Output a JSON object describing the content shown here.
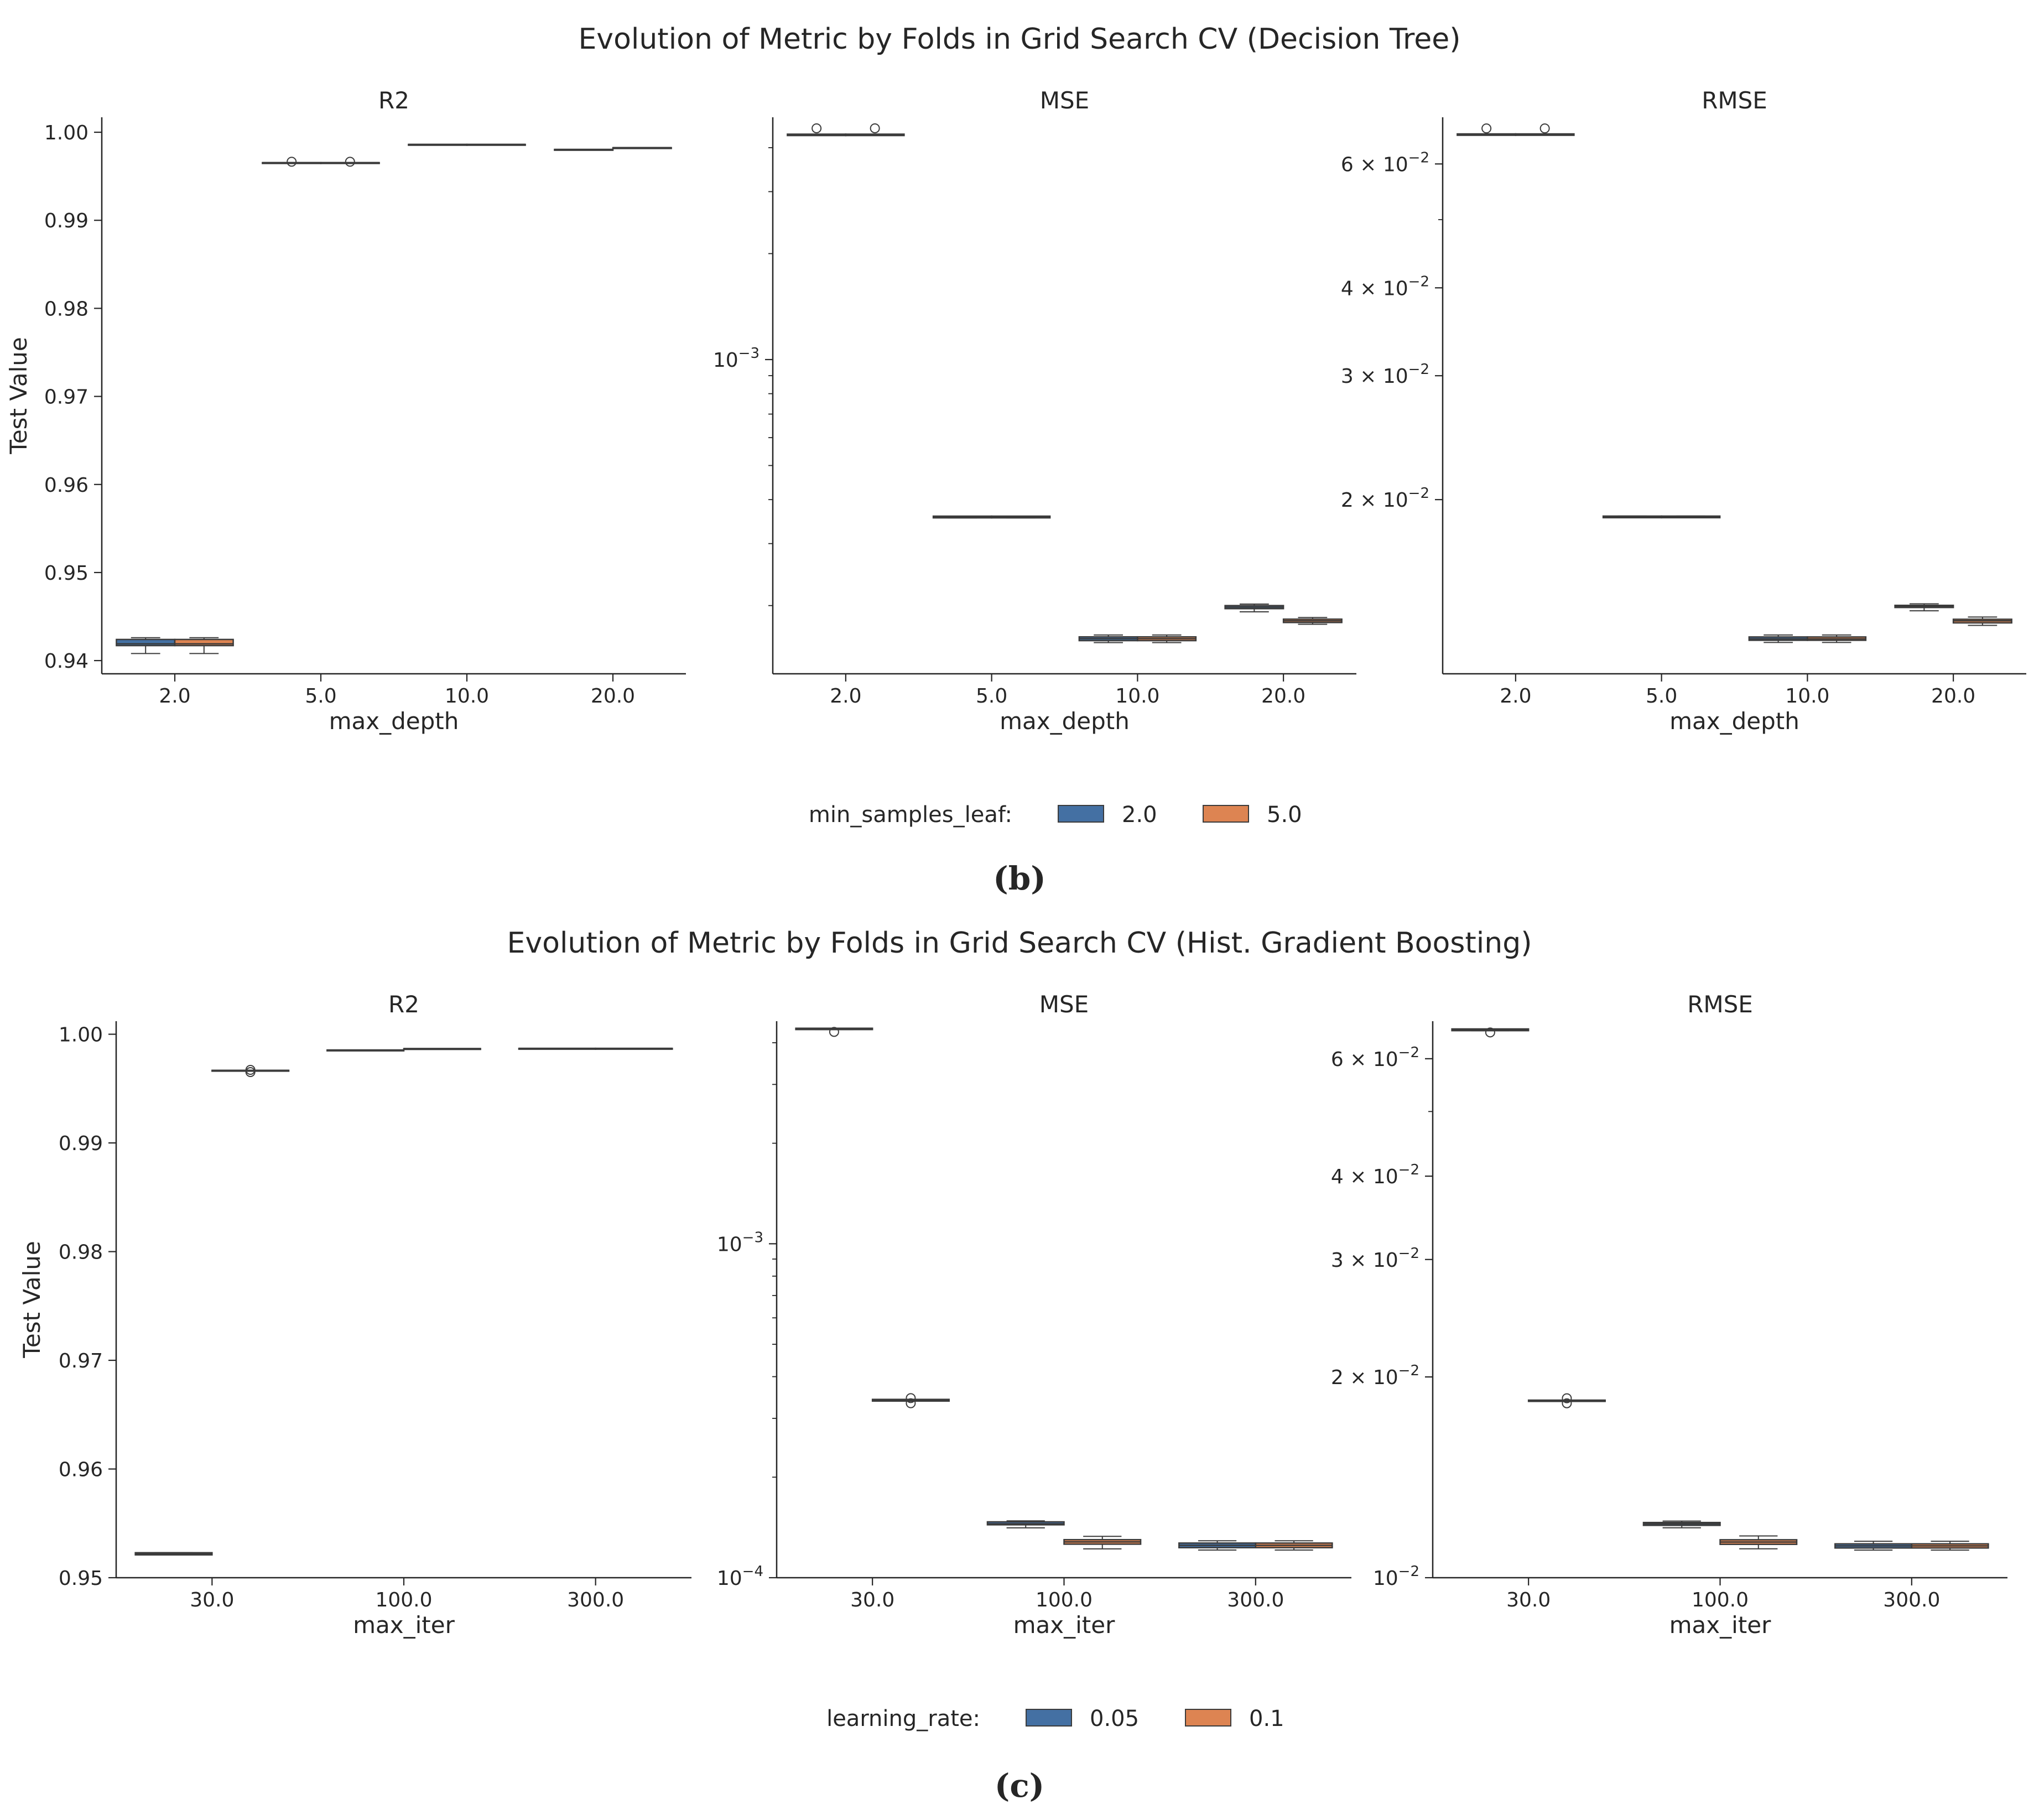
{
  "colors": {
    "series0": "#4470a3",
    "series1": "#dd8452",
    "edge": "#3b3b3b",
    "axis": "#262626"
  },
  "chart_data": [
    {
      "figure_title": "Evolution of Metric by Folds in Grid Search CV (Decision Tree)",
      "caption": "(b)",
      "ylabel": "Test Value",
      "xlabel": "max_depth",
      "categories": [
        "2.0",
        "5.0",
        "10.0",
        "20.0"
      ],
      "legend": {
        "title": "min_samples_leaf:",
        "labels": [
          "2.0",
          "5.0"
        ]
      },
      "panels": [
        {
          "title": "R2",
          "type": "box",
          "scale": "linear",
          "ylim": [
            0.9385,
            1.0017
          ],
          "yticks": [
            {
              "value": 0.94,
              "label": "0.94"
            },
            {
              "value": 0.95,
              "label": "0.95"
            },
            {
              "value": 0.96,
              "label": "0.96"
            },
            {
              "value": 0.97,
              "label": "0.97"
            },
            {
              "value": 0.98,
              "label": "0.98"
            },
            {
              "value": 0.99,
              "label": "0.99"
            },
            {
              "value": 1.0,
              "label": "1.00"
            }
          ],
          "boxes": [
            {
              "cat": 0,
              "series": 0,
              "min": 0.9408,
              "q1": 0.9417,
              "med": 0.9419,
              "q3": 0.9424,
              "max": 0.9426,
              "fliers": []
            },
            {
              "cat": 0,
              "series": 1,
              "min": 0.9408,
              "q1": 0.9417,
              "med": 0.9419,
              "q3": 0.9424,
              "max": 0.9426,
              "fliers": []
            },
            {
              "cat": 1,
              "series": 0,
              "min": 0.99655,
              "q1": 0.99655,
              "med": 0.99655,
              "q3": 0.99655,
              "max": 0.99655,
              "fliers": [
                0.99665
              ]
            },
            {
              "cat": 1,
              "series": 1,
              "min": 0.99655,
              "q1": 0.99655,
              "med": 0.99655,
              "q3": 0.99655,
              "max": 0.99655,
              "fliers": [
                0.99665
              ]
            },
            {
              "cat": 2,
              "series": 0,
              "min": 0.99862,
              "q1": 0.99862,
              "med": 0.99862,
              "q3": 0.99862,
              "max": 0.99862,
              "fliers": []
            },
            {
              "cat": 2,
              "series": 1,
              "min": 0.99862,
              "q1": 0.99862,
              "med": 0.99862,
              "q3": 0.99862,
              "max": 0.99862,
              "fliers": []
            },
            {
              "cat": 3,
              "series": 0,
              "min": 0.99805,
              "q1": 0.99805,
              "med": 0.99805,
              "q3": 0.99805,
              "max": 0.99805,
              "fliers": []
            },
            {
              "cat": 3,
              "series": 1,
              "min": 0.99825,
              "q1": 0.99825,
              "med": 0.99825,
              "q3": 0.99825,
              "max": 0.99825,
              "fliers": []
            }
          ]
        },
        {
          "title": "MSE",
          "type": "box",
          "scale": "log",
          "ylim": [
            0.000128,
            0.00488
          ],
          "yticks": [
            {
              "value": 0.001,
              "label": "10",
              "exp": "−3"
            }
          ],
          "minor_ticks": [
            0.0002,
            0.0003,
            0.0004,
            0.0005,
            0.0006,
            0.0007,
            0.0008,
            0.0009,
            0.002,
            0.003,
            0.004
          ],
          "boxes": [
            {
              "cat": 0,
              "series": 0,
              "min": 0.00433,
              "q1": 0.00433,
              "med": 0.00435,
              "q3": 0.00437,
              "max": 0.00437,
              "fliers": [
                0.00454
              ]
            },
            {
              "cat": 0,
              "series": 1,
              "min": 0.00433,
              "q1": 0.00433,
              "med": 0.00435,
              "q3": 0.00437,
              "max": 0.00437,
              "fliers": [
                0.00454
              ]
            },
            {
              "cat": 1,
              "series": 0,
              "min": 0.000355,
              "q1": 0.000355,
              "med": 0.000357,
              "q3": 0.000359,
              "max": 0.000359,
              "fliers": []
            },
            {
              "cat": 1,
              "series": 1,
              "min": 0.000355,
              "q1": 0.000355,
              "med": 0.000357,
              "q3": 0.000359,
              "max": 0.000359,
              "fliers": []
            },
            {
              "cat": 2,
              "series": 0,
              "min": 0.000157,
              "q1": 0.000159,
              "med": 0.000161,
              "q3": 0.000163,
              "max": 0.000165,
              "fliers": []
            },
            {
              "cat": 2,
              "series": 1,
              "min": 0.000157,
              "q1": 0.000159,
              "med": 0.000161,
              "q3": 0.000163,
              "max": 0.000165,
              "fliers": []
            },
            {
              "cat": 3,
              "series": 0,
              "min": 0.000192,
              "q1": 0.000196,
              "med": 0.000198,
              "q3": 0.0002,
              "max": 0.000202,
              "fliers": []
            },
            {
              "cat": 3,
              "series": 1,
              "min": 0.000177,
              "q1": 0.000179,
              "med": 0.000181,
              "q3": 0.000183,
              "max": 0.000185,
              "fliers": []
            }
          ]
        },
        {
          "title": "RMSE",
          "type": "box",
          "scale": "log",
          "ylim": [
            0.01131,
            0.0699
          ],
          "yticks": [
            {
              "value": 0.02,
              "label": "2 × 10",
              "exp": "−2"
            },
            {
              "value": 0.03,
              "label": "3 × 10",
              "exp": "−2"
            },
            {
              "value": 0.04,
              "label": "4 × 10",
              "exp": "−2"
            },
            {
              "value": 0.06,
              "label": "6 × 10",
              "exp": "−2"
            }
          ],
          "minor_ticks": [
            0.05
          ],
          "boxes": [
            {
              "cat": 0,
              "series": 0,
              "min": 0.0659,
              "q1": 0.0659,
              "med": 0.066,
              "q3": 0.0662,
              "max": 0.0662,
              "fliers": [
                0.0674
              ]
            },
            {
              "cat": 0,
              "series": 1,
              "min": 0.0659,
              "q1": 0.0659,
              "med": 0.066,
              "q3": 0.0662,
              "max": 0.0662,
              "fliers": [
                0.0674
              ]
            },
            {
              "cat": 1,
              "series": 0,
              "min": 0.01885,
              "q1": 0.01885,
              "med": 0.0189,
              "q3": 0.01895,
              "max": 0.01895,
              "fliers": []
            },
            {
              "cat": 1,
              "series": 1,
              "min": 0.01885,
              "q1": 0.01885,
              "med": 0.0189,
              "q3": 0.01895,
              "max": 0.01895,
              "fliers": []
            },
            {
              "cat": 2,
              "series": 0,
              "min": 0.01253,
              "q1": 0.01262,
              "med": 0.01268,
              "q3": 0.01276,
              "max": 0.01284,
              "fliers": []
            },
            {
              "cat": 2,
              "series": 1,
              "min": 0.01253,
              "q1": 0.01262,
              "med": 0.01268,
              "q3": 0.01276,
              "max": 0.01284,
              "fliers": []
            },
            {
              "cat": 3,
              "series": 0,
              "min": 0.0139,
              "q1": 0.01405,
              "med": 0.0141,
              "q3": 0.01415,
              "max": 0.01422,
              "fliers": []
            },
            {
              "cat": 3,
              "series": 1,
              "min": 0.01325,
              "q1": 0.01336,
              "med": 0.01345,
              "q3": 0.01352,
              "max": 0.01362,
              "fliers": []
            }
          ]
        }
      ]
    },
    {
      "figure_title": "Evolution of Metric by Folds in Grid Search CV (Hist. Gradient Boosting)",
      "caption": "(c)",
      "ylabel": "Test Value",
      "xlabel": "max_iter",
      "categories": [
        "30.0",
        "100.0",
        "300.0"
      ],
      "legend": {
        "title": "learning_rate:",
        "labels": [
          "0.05",
          "0.1"
        ]
      },
      "panels": [
        {
          "title": "R2",
          "type": "box",
          "scale": "linear",
          "ylim": [
            0.95,
            1.0012
          ],
          "yticks": [
            {
              "value": 0.95,
              "label": "0.95"
            },
            {
              "value": 0.96,
              "label": "0.96"
            },
            {
              "value": 0.97,
              "label": "0.97"
            },
            {
              "value": 0.98,
              "label": "0.98"
            },
            {
              "value": 0.99,
              "label": "0.99"
            },
            {
              "value": 1.0,
              "label": "1.00"
            }
          ],
          "boxes": [
            {
              "cat": 0,
              "series": 0,
              "min": 0.9521,
              "q1": 0.9521,
              "med": 0.9522,
              "q3": 0.9523,
              "max": 0.9523,
              "fliers": []
            },
            {
              "cat": 0,
              "series": 1,
              "min": 0.99668,
              "q1": 0.99668,
              "med": 0.99668,
              "q3": 0.99668,
              "max": 0.99668,
              "fliers": [
                0.99652,
                0.99672
              ]
            },
            {
              "cat": 1,
              "series": 0,
              "min": 0.99855,
              "q1": 0.99855,
              "med": 0.99855,
              "q3": 0.99855,
              "max": 0.99855,
              "fliers": []
            },
            {
              "cat": 1,
              "series": 1,
              "min": 0.99868,
              "q1": 0.99868,
              "med": 0.99868,
              "q3": 0.99868,
              "max": 0.99868,
              "fliers": []
            },
            {
              "cat": 2,
              "series": 0,
              "min": 0.9987,
              "q1": 0.9987,
              "med": 0.9987,
              "q3": 0.9987,
              "max": 0.9987,
              "fliers": []
            },
            {
              "cat": 2,
              "series": 1,
              "min": 0.9987,
              "q1": 0.9987,
              "med": 0.9987,
              "q3": 0.9987,
              "max": 0.9987,
              "fliers": []
            }
          ]
        },
        {
          "title": "MSE",
          "type": "box",
          "scale": "log",
          "ylim": [
            0.0001,
            0.00464
          ],
          "yticks": [
            {
              "value": 0.0001,
              "label": "10",
              "exp": "−4"
            },
            {
              "value": 0.001,
              "label": "10",
              "exp": "−3"
            }
          ],
          "minor_ticks": [
            0.0002,
            0.0003,
            0.0004,
            0.0005,
            0.0006,
            0.0007,
            0.0008,
            0.0009,
            0.002,
            0.003,
            0.004
          ],
          "boxes": [
            {
              "cat": 0,
              "series": 0,
              "min": 0.00438,
              "q1": 0.00438,
              "med": 0.0044,
              "q3": 0.00442,
              "max": 0.00442,
              "fliers": [
                0.00431
              ]
            },
            {
              "cat": 0,
              "series": 1,
              "min": 0.000338,
              "q1": 0.000338,
              "med": 0.00034,
              "q3": 0.000342,
              "max": 0.000342,
              "fliers": [
                0.000333,
                0.000345
              ]
            },
            {
              "cat": 1,
              "series": 0,
              "min": 0.000141,
              "q1": 0.000144,
              "med": 0.000145,
              "q3": 0.000147,
              "max": 0.000148,
              "fliers": []
            },
            {
              "cat": 1,
              "series": 1,
              "min": 0.000122,
              "q1": 0.000126,
              "med": 0.000128,
              "q3": 0.00013,
              "max": 0.000133,
              "fliers": []
            },
            {
              "cat": 2,
              "series": 0,
              "min": 0.000121,
              "q1": 0.000123,
              "med": 0.000125,
              "q3": 0.000127,
              "max": 0.000129,
              "fliers": []
            },
            {
              "cat": 2,
              "series": 1,
              "min": 0.000121,
              "q1": 0.000123,
              "med": 0.000125,
              "q3": 0.000127,
              "max": 0.000129,
              "fliers": []
            }
          ]
        },
        {
          "title": "RMSE",
          "type": "box",
          "scale": "log",
          "ylim": [
            0.01,
            0.0683
          ],
          "yticks": [
            {
              "value": 0.01,
              "label": "10",
              "exp": "−2"
            },
            {
              "value": 0.02,
              "label": "2 × 10",
              "exp": "−2"
            },
            {
              "value": 0.03,
              "label": "3 × 10",
              "exp": "−2"
            },
            {
              "value": 0.04,
              "label": "4 × 10",
              "exp": "−2"
            },
            {
              "value": 0.06,
              "label": "6 × 10",
              "exp": "−2"
            }
          ],
          "minor_ticks": [
            0.05
          ],
          "boxes": [
            {
              "cat": 0,
              "series": 0,
              "min": 0.0661,
              "q1": 0.0661,
              "med": 0.0663,
              "q3": 0.0665,
              "max": 0.0665,
              "fliers": [
                0.0657
              ]
            },
            {
              "cat": 0,
              "series": 1,
              "min": 0.01838,
              "q1": 0.01838,
              "med": 0.01842,
              "q3": 0.01846,
              "max": 0.01846,
              "fliers": [
                0.01826,
                0.01858
              ]
            },
            {
              "cat": 1,
              "series": 0,
              "min": 0.01188,
              "q1": 0.01198,
              "med": 0.01204,
              "q3": 0.0121,
              "max": 0.01216,
              "fliers": []
            },
            {
              "cat": 1,
              "series": 1,
              "min": 0.01105,
              "q1": 0.01122,
              "med": 0.01131,
              "q3": 0.0114,
              "max": 0.01155,
              "fliers": []
            },
            {
              "cat": 2,
              "series": 0,
              "min": 0.011,
              "q1": 0.01108,
              "med": 0.01116,
              "q3": 0.01124,
              "max": 0.01134,
              "fliers": []
            },
            {
              "cat": 2,
              "series": 1,
              "min": 0.011,
              "q1": 0.01108,
              "med": 0.01116,
              "q3": 0.01124,
              "max": 0.01134,
              "fliers": []
            }
          ]
        }
      ]
    }
  ]
}
